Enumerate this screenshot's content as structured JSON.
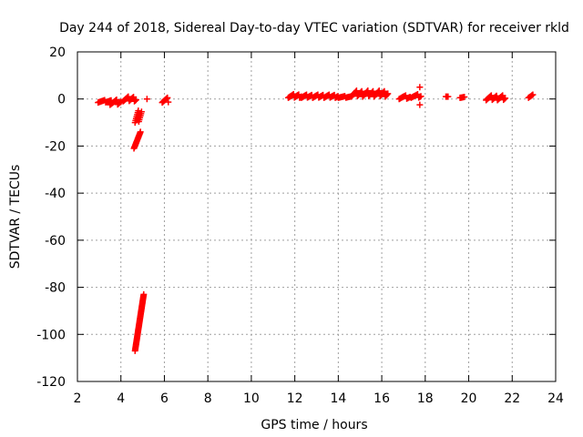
{
  "chart_data": {
    "type": "scatter",
    "title": "Day 244 of 2018, Sidereal Day-to-day VTEC variation (SDTVAR) for receiver rkld",
    "xlabel": "GPS time / hours",
    "ylabel": "SDTVAR / TECUs",
    "xlim": [
      2,
      24
    ],
    "ylim": [
      -120,
      20
    ],
    "xticks": [
      2,
      4,
      6,
      8,
      10,
      12,
      14,
      16,
      18,
      20,
      22,
      24
    ],
    "yticks": [
      20,
      0,
      -20,
      -40,
      -60,
      -80,
      -100,
      -120
    ],
    "grid": true,
    "marker": "+",
    "colors": {
      "points": "#ff0000",
      "axes": "#000000",
      "grid": "#a0a0a0"
    },
    "clusters": [
      {
        "x": [
          2.95,
          3.55
        ],
        "y": [
          -1.5,
          -0.5
        ],
        "step": 0.05
      },
      {
        "x": [
          3.5,
          4.0
        ],
        "y": [
          -2.5,
          -0.3
        ],
        "step": 0.05
      },
      {
        "x": [
          4.1,
          4.7
        ],
        "y": [
          -1.0,
          1.0
        ],
        "step": 0.04
      },
      {
        "x": [
          4.65,
          4.95
        ],
        "y": [
          -10.0,
          -5.0
        ],
        "step": 0.025
      },
      {
        "x": [
          4.6,
          4.9
        ],
        "y": [
          -21.0,
          -14.0
        ],
        "step": 0.02
      },
      {
        "x": [
          4.65,
          5.05
        ],
        "y": [
          -107.0,
          -83.0
        ],
        "step": 0.008
      },
      {
        "x": [
          5.2,
          5.2
        ],
        "y": [
          0.0,
          0.0
        ],
        "step": 1
      },
      {
        "x": [
          5.9,
          6.2
        ],
        "y": [
          -1.5,
          0.5
        ],
        "step": 0.04
      },
      {
        "x": [
          11.7,
          12.3
        ],
        "y": [
          0.5,
          2.0
        ],
        "step": 0.04
      },
      {
        "x": [
          12.3,
          14.0
        ],
        "y": [
          0.5,
          1.8
        ],
        "step": 0.04
      },
      {
        "x": [
          14.0,
          14.6
        ],
        "y": [
          0.5,
          1.2
        ],
        "step": 0.05
      },
      {
        "x": [
          14.6,
          16.3
        ],
        "y": [
          1.0,
          3.5
        ],
        "step": 0.04
      },
      {
        "x": [
          16.8,
          17.3
        ],
        "y": [
          0.0,
          1.5
        ],
        "step": 0.05
      },
      {
        "x": [
          17.35,
          17.8
        ],
        "y": [
          0.5,
          2.0
        ],
        "step": 0.05
      },
      {
        "x": [
          17.75,
          17.75
        ],
        "y": [
          5.0,
          5.0
        ],
        "step": 1
      },
      {
        "x": [
          17.75,
          17.75
        ],
        "y": [
          -2.5,
          -2.5
        ],
        "step": 1
      },
      {
        "x": [
          18.95,
          19.05
        ],
        "y": [
          1.0,
          1.0
        ],
        "step": 0.05
      },
      {
        "x": [
          19.6,
          19.8
        ],
        "y": [
          0.5,
          1.0
        ],
        "step": 0.05
      },
      {
        "x": [
          20.8,
          21.7
        ],
        "y": [
          -0.5,
          1.5
        ],
        "step": 0.04
      },
      {
        "x": [
          22.75,
          22.95
        ],
        "y": [
          0.5,
          2.5
        ],
        "step": 0.05
      }
    ]
  }
}
